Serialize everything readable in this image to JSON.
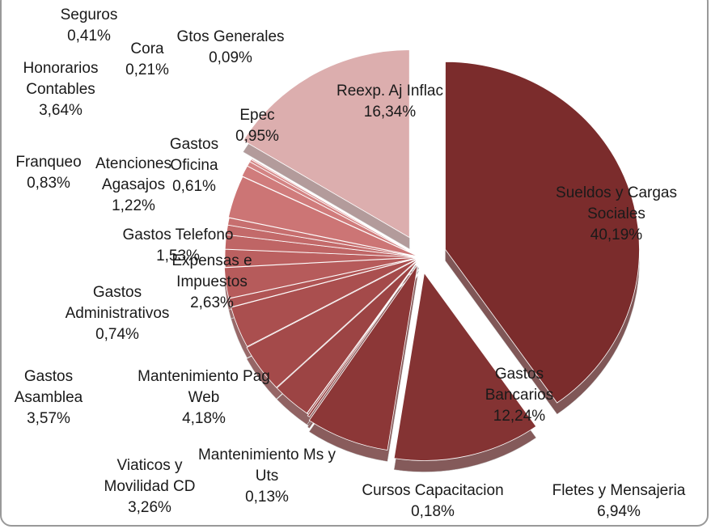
{
  "chart_data": {
    "type": "pie",
    "categories": [
      "Sueldos y Cargas Sociales",
      "Gastos Bancarios",
      "Fletes y Mensajeria",
      "Cursos Capacitacion",
      "Mantenimiento Ms y Uts",
      "Viaticos y Movilidad CD",
      "Mantenimiento Pag Web",
      "Gastos Asamblea",
      "Gastos Administrativos",
      "Expensas e Impuestos",
      "Gastos Telefono",
      "Atenciones Agasajos",
      "Franqueo",
      "Gastos Oficina",
      "Honorarios Contables",
      "Epec",
      "Seguros",
      "Cora",
      "Gtos Generales",
      "Reexp. Aj Inflac"
    ],
    "values": [
      40.19,
      12.24,
      6.94,
      0.18,
      0.13,
      3.26,
      4.18,
      3.57,
      0.74,
      2.63,
      1.53,
      1.22,
      0.83,
      0.61,
      3.64,
      0.95,
      0.41,
      0.21,
      0.09,
      16.34
    ],
    "value_labels": [
      "40,19%",
      "12,24%",
      "6,94%",
      "0,18%",
      "0,13%",
      "3,26%",
      "4,18%",
      "3,57%",
      "0,74%",
      "2,63%",
      "1,53%",
      "1,22%",
      "0,83%",
      "0,61%",
      "3,64%",
      "0,95%",
      "0,41%",
      "0,21%",
      "0,09%",
      "16,34%"
    ],
    "colors": [
      "#7b2c2c",
      "#843333",
      "#8c3737",
      "#923c3c",
      "#974141",
      "#9c4444",
      "#a44a4a",
      "#aa4f4f",
      "#b05555",
      "#b65b5b",
      "#bb6060",
      "#bf6565",
      "#c36a6a",
      "#c76f6f",
      "#cc7575",
      "#d07c7c",
      "#d48484",
      "#d68989",
      "#d88e8e",
      "#dcaeae"
    ]
  }
}
